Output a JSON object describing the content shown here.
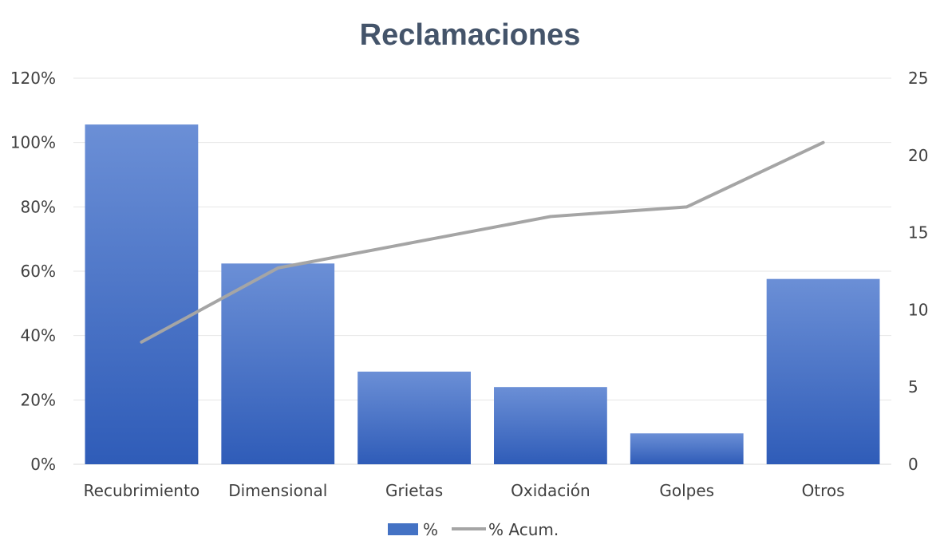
{
  "chart_data": {
    "type": "bar",
    "title": "Reclamaciones",
    "categories": [
      "Recubrimiento",
      "Dimensional",
      "Grietas",
      "Oxidación",
      "Golpes",
      "Otros"
    ],
    "series": [
      {
        "name": "%",
        "type": "bar",
        "axis": "right",
        "values": [
          22,
          13,
          6,
          5,
          2,
          12
        ]
      },
      {
        "name": "% Acum.",
        "type": "line",
        "axis": "left",
        "values": [
          0.38,
          0.61,
          0.69,
          0.77,
          0.8,
          1.0
        ]
      }
    ],
    "y_left": {
      "ylim": [
        0,
        1.2
      ],
      "ticks": [
        0,
        0.2,
        0.4,
        0.6,
        0.8,
        1.0,
        1.2
      ],
      "tick_labels": [
        "0%",
        "20%",
        "40%",
        "60%",
        "80%",
        "100%",
        "120%"
      ]
    },
    "y_right": {
      "ylim": [
        0,
        25
      ],
      "ticks": [
        0,
        5,
        10,
        15,
        20,
        25
      ],
      "tick_labels": [
        "0",
        "5",
        "10",
        "15",
        "20",
        "25"
      ]
    },
    "grid": true,
    "legend_position": "bottom",
    "colors": {
      "bar": "#4472c4",
      "bar_light": "#6b8fd6",
      "bar_dark": "#2f5cb8",
      "line": "#a5a5a5",
      "title": "#44546a",
      "text": "#404040",
      "grid": "#e6e6e6"
    }
  }
}
